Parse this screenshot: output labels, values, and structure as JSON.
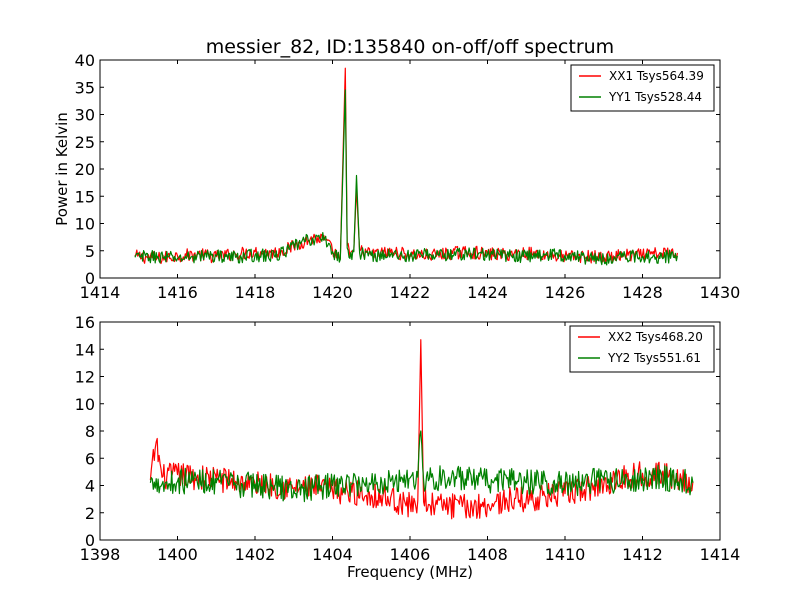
{
  "chart_data": [
    {
      "type": "line",
      "title": "messier_82, ID:135840 on-off/off spectrum",
      "xlabel": "",
      "ylabel": "Power in Kelvin",
      "xlim": [
        1414,
        1430
      ],
      "ylim": [
        0,
        40
      ],
      "xticks": [
        1414,
        1416,
        1418,
        1420,
        1422,
        1424,
        1426,
        1428,
        1430
      ],
      "yticks": [
        0,
        5,
        10,
        15,
        20,
        25,
        30,
        35,
        40
      ],
      "legend_position": "top-right",
      "grid": false,
      "series": [
        {
          "name": "XX1 Tsys564.39",
          "color": "#ff0000",
          "x": [
            1414.9,
            1415.5,
            1416.0,
            1416.5,
            1417.0,
            1417.5,
            1418.0,
            1418.5,
            1418.9,
            1419.2,
            1419.5,
            1419.8,
            1420.0,
            1420.2,
            1420.33,
            1420.38,
            1420.45,
            1420.55,
            1420.62,
            1420.7,
            1421.0,
            1421.5,
            1422.0,
            1422.5,
            1423.0,
            1423.5,
            1424.0,
            1424.5,
            1425.0,
            1425.5,
            1426.0,
            1426.5,
            1427.0,
            1427.5,
            1428.0,
            1428.5,
            1428.9
          ],
          "y": [
            4.0,
            3.6,
            4.1,
            4.3,
            3.9,
            4.4,
            4.8,
            4.6,
            5.5,
            6.5,
            7.3,
            7.0,
            5.0,
            3.5,
            38.5,
            6.0,
            3.8,
            5.0,
            16.5,
            5.0,
            4.4,
            4.7,
            4.3,
            4.1,
            4.5,
            4.8,
            4.4,
            4.3,
            4.6,
            4.2,
            3.9,
            4.0,
            3.8,
            4.1,
            4.2,
            4.5,
            4.6
          ]
        },
        {
          "name": "YY1 Tsys528.44",
          "color": "#008000",
          "x": [
            1414.9,
            1415.5,
            1416.0,
            1416.5,
            1417.0,
            1417.5,
            1418.0,
            1418.5,
            1418.9,
            1419.2,
            1419.5,
            1419.8,
            1420.0,
            1420.2,
            1420.33,
            1420.38,
            1420.45,
            1420.55,
            1420.62,
            1420.7,
            1421.0,
            1421.5,
            1422.0,
            1422.5,
            1423.0,
            1423.5,
            1424.0,
            1424.5,
            1425.0,
            1425.5,
            1426.0,
            1426.5,
            1427.0,
            1427.5,
            1428.0,
            1428.5,
            1428.9
          ],
          "y": [
            3.8,
            3.9,
            3.6,
            4.0,
            4.1,
            3.8,
            4.2,
            4.0,
            5.3,
            6.6,
            7.1,
            7.3,
            4.8,
            3.4,
            34.5,
            5.5,
            3.6,
            4.8,
            18.8,
            4.6,
            4.1,
            4.3,
            4.0,
            4.4,
            4.2,
            4.5,
            4.3,
            4.1,
            4.0,
            4.3,
            4.2,
            3.7,
            3.5,
            3.9,
            4.0,
            3.8,
            4.1
          ]
        }
      ]
    },
    {
      "type": "line",
      "title": "",
      "xlabel": "Frequency (MHz)",
      "ylabel": "",
      "xlim": [
        1398,
        1414
      ],
      "ylim": [
        0,
        16
      ],
      "xticks": [
        1398,
        1400,
        1402,
        1404,
        1406,
        1408,
        1410,
        1412,
        1414
      ],
      "yticks": [
        0,
        2,
        4,
        6,
        8,
        10,
        12,
        14,
        16
      ],
      "legend_position": "top-right",
      "grid": false,
      "series": [
        {
          "name": "XX2 Tsys468.20",
          "color": "#ff0000",
          "x": [
            1399.3,
            1399.45,
            1399.6,
            1400.0,
            1400.5,
            1401.0,
            1401.5,
            1402.0,
            1402.5,
            1403.0,
            1403.5,
            1404.0,
            1404.5,
            1405.0,
            1405.5,
            1405.9,
            1406.2,
            1406.28,
            1406.35,
            1406.6,
            1407.0,
            1407.5,
            1408.0,
            1408.5,
            1409.0,
            1409.5,
            1410.0,
            1410.5,
            1411.0,
            1411.5,
            1412.0,
            1412.5,
            1413.0,
            1413.3
          ],
          "y": [
            4.4,
            7.2,
            4.6,
            4.8,
            4.6,
            4.5,
            4.3,
            4.1,
            4.0,
            3.8,
            3.9,
            3.6,
            3.5,
            3.3,
            3.1,
            2.5,
            2.9,
            14.7,
            2.8,
            2.6,
            2.5,
            2.4,
            2.6,
            2.9,
            3.0,
            3.2,
            3.4,
            3.7,
            4.1,
            4.6,
            4.9,
            4.8,
            4.5,
            4.3
          ]
        },
        {
          "name": "YY2 Tsys551.61",
          "color": "#008000",
          "x": [
            1399.3,
            1399.45,
            1399.6,
            1400.0,
            1400.5,
            1401.0,
            1401.5,
            1402.0,
            1402.5,
            1403.0,
            1403.5,
            1404.0,
            1404.5,
            1405.0,
            1405.5,
            1405.9,
            1406.2,
            1406.28,
            1406.35,
            1406.6,
            1407.0,
            1407.5,
            1408.0,
            1408.5,
            1409.0,
            1409.5,
            1410.0,
            1410.5,
            1411.0,
            1411.5,
            1412.0,
            1412.5,
            1413.0,
            1413.3
          ],
          "y": [
            4.2,
            4.5,
            4.1,
            4.3,
            4.4,
            4.2,
            4.0,
            4.1,
            3.9,
            3.7,
            3.8,
            4.0,
            4.1,
            4.2,
            4.3,
            4.5,
            4.6,
            8.0,
            4.4,
            4.5,
            4.6,
            4.4,
            4.3,
            4.5,
            4.2,
            4.3,
            4.1,
            4.2,
            4.4,
            4.3,
            4.5,
            4.6,
            4.4,
            4.2
          ]
        }
      ]
    }
  ]
}
